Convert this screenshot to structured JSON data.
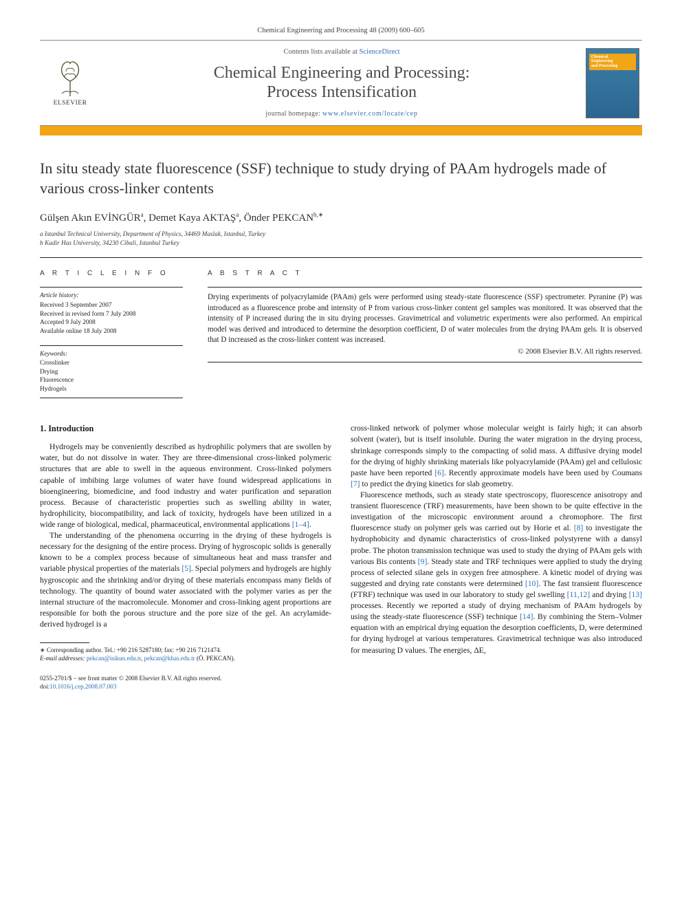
{
  "header": {
    "citation": "Chemical Engineering and Processing 48 (2009) 600–605",
    "contents_prefix": "Contents lists available at ",
    "contents_link": "ScienceDirect",
    "journal_title_line1": "Chemical Engineering and Processing:",
    "journal_title_line2": "Process Intensification",
    "homepage_prefix": "journal homepage: ",
    "homepage_url": "www.elsevier.com/locate/cep",
    "publisher": "ELSEVIER",
    "cover_label1": "Chemical",
    "cover_label2": "Engineering",
    "cover_label3": "and Processing"
  },
  "article": {
    "title": "In situ steady state fluorescence (SSF) technique to study drying of PAAm hydrogels made of various cross-linker contents",
    "authors_html": "Gülşen Akın EVİNGÜR<sup>a</sup>, Demet Kaya AKTAŞ<sup>a</sup>, Önder PEKCAN<sup>b,∗</sup>",
    "affiliations": [
      "a Istanbul Technical University, Department of Physics, 34469 Maslak, Istanbul, Turkey",
      "b Kadir Has University, 34230 Cibali, Istanbul Turkey"
    ]
  },
  "meta": {
    "info_heading": "A R T I C L E   I N F O",
    "abstract_heading": "A B S T R A C T",
    "history_label": "Article history:",
    "history": [
      "Received 3 September 2007",
      "Received in revised form 7 July 2008",
      "Accepted 9 July 2008",
      "Available online 18 July 2008"
    ],
    "keywords_label": "Keywords:",
    "keywords": [
      "Crosslinker",
      "Drying",
      "Fluorescence",
      "Hydrogels"
    ],
    "abstract": "Drying experiments of polyacrylamide (PAAm) gels were performed using steady-state fluorescence (SSF) spectrometer. Pyranine (P) was introduced as a fluorescence probe and intensity of P from various cross-linker content gel samples was monitored. It was observed that the intensity of P increased during the in situ drying processes. Gravimetrical and volumetric experiments were also performed. An empirical model was derived and introduced to determine the desorption coefficient, D of water molecules from the drying PAAm gels. It is observed that D increased as the cross-linker content was increased.",
    "copyright": "© 2008 Elsevier B.V. All rights reserved."
  },
  "body": {
    "section1_heading": "1.  Introduction",
    "p1": "Hydrogels may be conveniently described as hydrophilic polymers that are swollen by water, but do not dissolve in water. They are three-dimensional cross-linked polymeric structures that are able to swell in the aqueous environment. Cross-linked polymers capable of imbibing large volumes of water have found widespread applications in bioengineering, biomedicine, and food industry and water purification and separation process. Because of characteristic properties such as swelling ability in water, hydrophilicity, biocompatibility, and lack of toxicity, hydrogels have been utilized in a wide range of biological, medical, pharmaceutical, environmental applications ",
    "p1_ref": "[1–4]",
    "p1_end": ".",
    "p2": "The understanding of the phenomena occurring in the drying of these hydrogels is necessary for the designing of the entire process. Drying of hygroscopic solids is generally known to be a complex process because of simultaneous heat and mass transfer and variable physical properties of the materials ",
    "p2_ref": "[5]",
    "p2b": ". Special polymers and hydrogels are highly hygroscopic and the shrinking and/or drying of these materials encompass many fields of technology. The quantity of bound water associated with the polymer varies as per the internal structure of the macromolecule. Monomer and cross-linking agent proportions are responsible for both the porous structure and the pore size of the gel. An acrylamide-derived hydrogel is a ",
    "p3a": "cross-linked network of polymer whose molecular weight is fairly high; it can absorb solvent (water), but is itself insoluble. During the water migration in the drying process, shrinkage corresponds simply to the compacting of solid mass. A diffusive drying model for the drying of highly shrinking materials like polyacrylamide (PAAm) gel and cellulosic paste have been reported ",
    "p3_ref6": "[6]",
    "p3b": ". Recently approximate models have been used by Coumans ",
    "p3_ref7": "[7]",
    "p3c": " to predict the drying kinetics for slab geometry.",
    "p4a": "Fluorescence methods, such as steady state spectroscopy, fluorescence anisotropy and transient fluorescence (TRF) measurements, have been shown to be quite effective in the investigation of the microscopic environment around a chromophore. The first fluorescence study on polymer gels was carried out by Horie et al. ",
    "p4_ref8": "[8]",
    "p4b": " to investigate the hydrophobicity and dynamic characteristics of cross-linked polystyrene with a dansyl probe. The photon transmission technique was used to study the drying of PAAm gels with various Bis contents ",
    "p4_ref9": "[9]",
    "p4c": ". Steady state and TRF techniques were applied to study the drying process of selected silane gels in oxygen free atmosphere. A kinetic model of drying was suggested and drying rate constants were determined ",
    "p4_ref10": "[10]",
    "p4d": ". The fast transient fluorescence (FTRF) technique was used in our laboratory to study gel swelling ",
    "p4_ref1112": "[11,12]",
    "p4e": " and drying ",
    "p4_ref13": "[13]",
    "p4f": " processes. Recently we reported a study of drying mechanism of PAAm hydrogels by using the steady-state fluorescence (SSF) technique ",
    "p4_ref14": "[14]",
    "p4g": ". By combining the Stern–Volmer equation with an empirical drying equation the desorption coefficients, D, were determined for drying hydrogel at various temperatures. Gravimetrical technique was also introduced for measuring D values. The energies, ΔE,"
  },
  "footnote": {
    "corresponding": "∗ Corresponding author. Tel.: +90 216 5287180; fax: +90 216 7121474.",
    "email_label": "E-mail addresses: ",
    "email1": "pekcan@isikun.edu.tr",
    "email_sep": ", ",
    "email2": "pekcan@khas.edu.tr",
    "email_who": " (Ö. PEKCAN)."
  },
  "footer": {
    "line1": "0255-2701/$ – see front matter © 2008 Elsevier B.V. All rights reserved.",
    "doi_label": "doi:",
    "doi": "10.1016/j.cep.2008.07.003"
  },
  "colors": {
    "accent": "#f2a516",
    "link": "#2a6fb3",
    "text": "#1a1a1a",
    "rule": "#222222"
  }
}
